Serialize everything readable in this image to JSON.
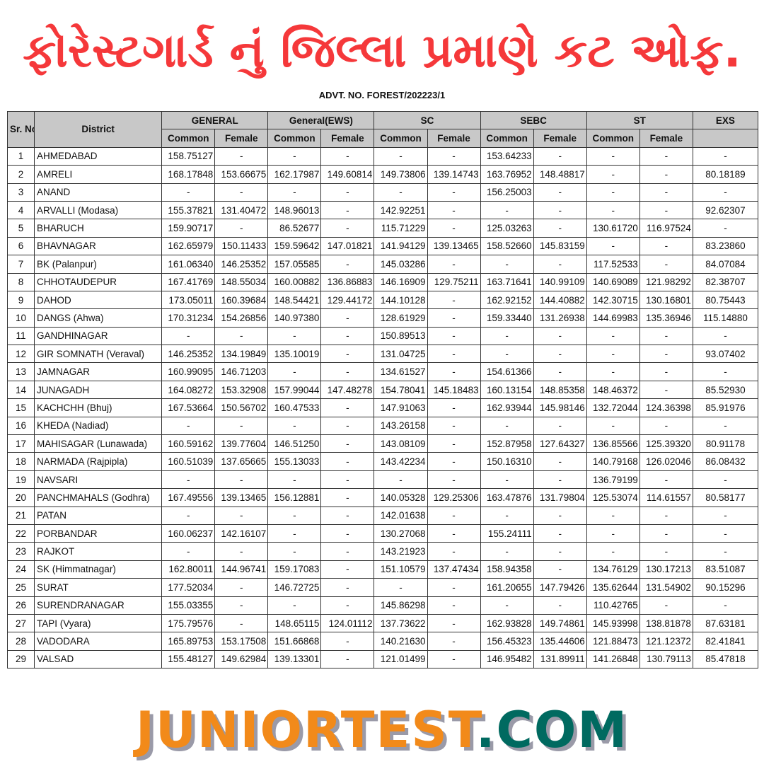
{
  "title": "ફોરેસ્ટગાર્ડ નું  જિલ્લા પ્રમાણે કટ ઓફ.",
  "advt": "ADVT. NO. FOREST/202223/1",
  "colors": {
    "title": "#f5383a",
    "logo_orange": "#f28a1a",
    "logo_teal": "#006a60",
    "header_bg": "#c8c8c8"
  },
  "table": {
    "sr_header": "Sr. No.",
    "district_header": "District",
    "groups": [
      "GENERAL",
      "General(EWS)",
      "SC",
      "SEBC",
      "ST",
      "EXS"
    ],
    "subheaders": [
      "Common",
      "Female"
    ],
    "rows": [
      [
        "1",
        "AHMEDABAD",
        "158.75127",
        "-",
        "-",
        "-",
        "-",
        "-",
        "153.64233",
        "-",
        "-",
        "-",
        "-"
      ],
      [
        "2",
        "AMRELI",
        "168.17848",
        "153.66675",
        "162.17987",
        "149.60814",
        "149.73806",
        "139.14743",
        "163.76952",
        "148.48817",
        "-",
        "-",
        "80.18189"
      ],
      [
        "3",
        "ANAND",
        "-",
        "-",
        "-",
        "-",
        "-",
        "-",
        "156.25003",
        "-",
        "-",
        "-",
        "-"
      ],
      [
        "4",
        "ARVALLI (Modasa)",
        "155.37821",
        "131.40472",
        "148.96013",
        "-",
        "142.92251",
        "-",
        "-",
        "-",
        "-",
        "-",
        "92.62307"
      ],
      [
        "5",
        "BHARUCH",
        "159.90717",
        "-",
        "86.52677",
        "-",
        "115.71229",
        "-",
        "125.03263",
        "-",
        "130.61720",
        "116.97524",
        "-"
      ],
      [
        "6",
        "BHAVNAGAR",
        "162.65979",
        "150.11433",
        "159.59642",
        "147.01821",
        "141.94129",
        "139.13465",
        "158.52660",
        "145.83159",
        "-",
        "-",
        "83.23860"
      ],
      [
        "7",
        "BK (Palanpur)",
        "161.06340",
        "146.25352",
        "157.05585",
        "-",
        "145.03286",
        "-",
        "-",
        "-",
        "117.52533",
        "-",
        "84.07084"
      ],
      [
        "8",
        "CHHOTAUDEPUR",
        "167.41769",
        "148.55034",
        "160.00882",
        "136.86883",
        "146.16909",
        "129.75211",
        "163.71641",
        "140.99109",
        "140.69089",
        "121.98292",
        "82.38707"
      ],
      [
        "9",
        "DAHOD",
        "173.05011",
        "160.39684",
        "148.54421",
        "129.44172",
        "144.10128",
        "-",
        "162.92152",
        "144.40882",
        "142.30715",
        "130.16801",
        "80.75443"
      ],
      [
        "10",
        "DANGS (Ahwa)",
        "170.31234",
        "154.26856",
        "140.97380",
        "-",
        "128.61929",
        "-",
        "159.33440",
        "131.26938",
        "144.69983",
        "135.36946",
        "115.14880"
      ],
      [
        "11",
        "GANDHINAGAR",
        "-",
        "-",
        "-",
        "-",
        "150.89513",
        "-",
        "-",
        "-",
        "-",
        "-",
        "-"
      ],
      [
        "12",
        "GIR SOMNATH (Veraval)",
        "146.25352",
        "134.19849",
        "135.10019",
        "-",
        "131.04725",
        "-",
        "-",
        "-",
        "-",
        "-",
        "93.07402"
      ],
      [
        "13",
        "JAMNAGAR",
        "160.99095",
        "146.71203",
        "-",
        "-",
        "134.61527",
        "-",
        "154.61366",
        "-",
        "-",
        "-",
        "-"
      ],
      [
        "14",
        "JUNAGADH",
        "164.08272",
        "153.32908",
        "157.99044",
        "147.48278",
        "154.78041",
        "145.18483",
        "160.13154",
        "148.85358",
        "148.46372",
        "-",
        "85.52930"
      ],
      [
        "15",
        "KACHCHH (Bhuj)",
        "167.53664",
        "150.56702",
        "160.47533",
        "-",
        "147.91063",
        "-",
        "162.93944",
        "145.98146",
        "132.72044",
        "124.36398",
        "85.91976"
      ],
      [
        "16",
        "KHEDA (Nadiad)",
        "-",
        "-",
        "-",
        "-",
        "143.26158",
        "-",
        "-",
        "-",
        "-",
        "-",
        "-"
      ],
      [
        "17",
        "MAHISAGAR (Lunawada)",
        "160.59162",
        "139.77604",
        "146.51250",
        "-",
        "143.08109",
        "-",
        "152.87958",
        "127.64327",
        "136.85566",
        "125.39320",
        "80.91178"
      ],
      [
        "18",
        "NARMADA (Rajpipla)",
        "160.51039",
        "137.65665",
        "155.13033",
        "-",
        "143.42234",
        "-",
        "150.16310",
        "-",
        "140.79168",
        "126.02046",
        "86.08432"
      ],
      [
        "19",
        "NAVSARI",
        "-",
        "-",
        "-",
        "-",
        "-",
        "-",
        "-",
        "-",
        "136.79199",
        "-",
        "-"
      ],
      [
        "20",
        "PANCHMAHALS (Godhra)",
        "167.49556",
        "139.13465",
        "156.12881",
        "-",
        "140.05328",
        "129.25306",
        "163.47876",
        "131.79804",
        "125.53074",
        "114.61557",
        "80.58177"
      ],
      [
        "21",
        "PATAN",
        "-",
        "-",
        "-",
        "-",
        "142.01638",
        "-",
        "-",
        "-",
        "-",
        "-",
        "-"
      ],
      [
        "22",
        "PORBANDAR",
        "160.06237",
        "142.16107",
        "-",
        "-",
        "130.27068",
        "-",
        "155.24111",
        "-",
        "-",
        "-",
        "-"
      ],
      [
        "23",
        "RAJKOT",
        "-",
        "-",
        "-",
        "-",
        "143.21923",
        "-",
        "-",
        "-",
        "-",
        "-",
        "-"
      ],
      [
        "24",
        "SK (Himmatnagar)",
        "162.80011",
        "144.96741",
        "159.17083",
        "-",
        "151.10579",
        "137.47434",
        "158.94358",
        "-",
        "134.76129",
        "130.17213",
        "83.51087"
      ],
      [
        "25",
        "SURAT",
        "177.52034",
        "-",
        "146.72725",
        "-",
        "-",
        "-",
        "161.20655",
        "147.79426",
        "135.62644",
        "131.54902",
        "90.15296"
      ],
      [
        "26",
        "SURENDRANAGAR",
        "155.03355",
        "-",
        "-",
        "-",
        "145.86298",
        "-",
        "-",
        "-",
        "110.42765",
        "-",
        "-"
      ],
      [
        "27",
        "TAPI (Vyara)",
        "175.79576",
        "-",
        "148.65115",
        "124.01112",
        "137.73622",
        "-",
        "162.93828",
        "149.74861",
        "145.93998",
        "138.81878",
        "87.63181"
      ],
      [
        "28",
        "VADODARA",
        "165.89753",
        "153.17508",
        "151.66868",
        "-",
        "140.21630",
        "-",
        "156.45323",
        "135.44606",
        "121.88473",
        "121.12372",
        "82.41841"
      ],
      [
        "29",
        "VALSAD",
        "155.48127",
        "149.62984",
        "139.13301",
        "-",
        "121.01499",
        "-",
        "146.95482",
        "131.89911",
        "141.26848",
        "130.79113",
        "85.47818"
      ]
    ]
  },
  "logo": {
    "part1": "JUNIORTEST",
    "part2": ".COM"
  }
}
